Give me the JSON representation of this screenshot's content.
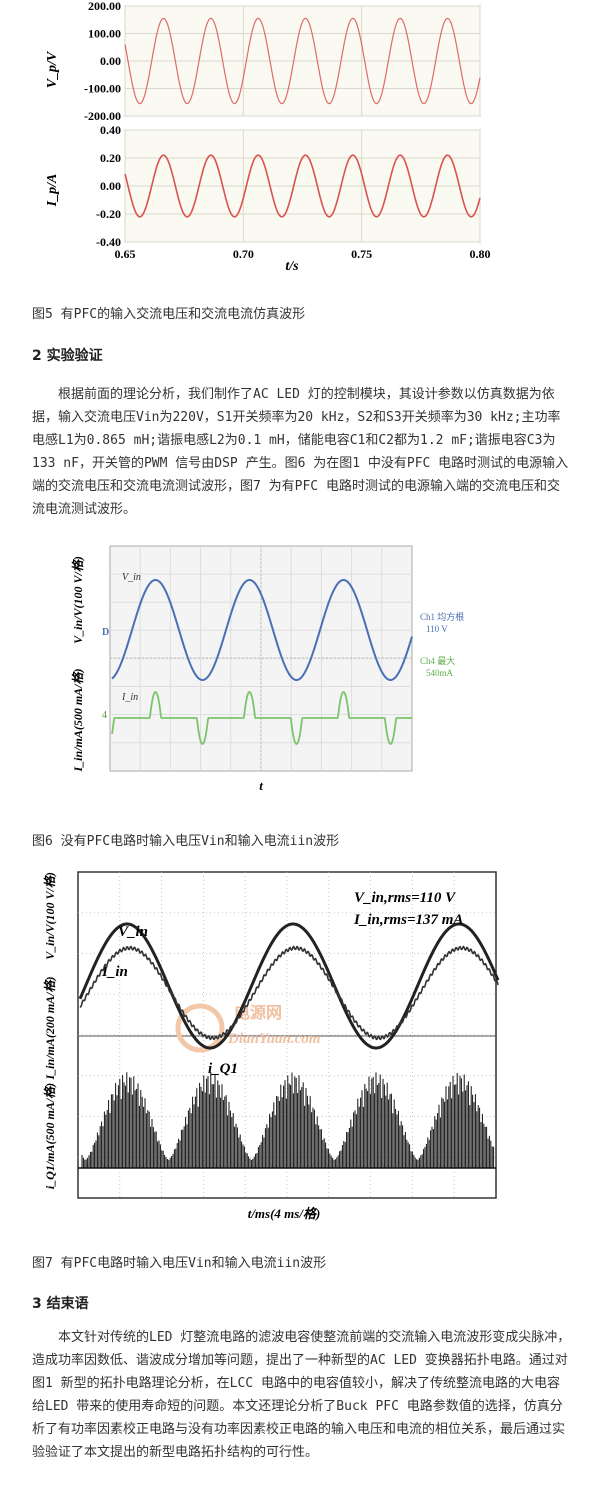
{
  "figures": {
    "fig5": {
      "caption": "图5 有PFC的输入交流电压和交流电流仿真波形",
      "top_ylabel": "V_p/V",
      "bottom_ylabel": "I_p/A",
      "xlabel": "t/s"
    },
    "fig6": {
      "caption": "图6 没有PFC电路时输入电压Vin和输入电流iin波形",
      "ylabel_top": "V_in/V(100 V/格)",
      "ylabel_bottom": "I_in/mA(500 mA/格)",
      "xlabel": "t",
      "ch1_label": "Ch1 均方根",
      "ch1_value": "110 V",
      "ch4_label": "Ch4 最大",
      "ch4_value": "540mA",
      "vin_label": "V_in",
      "iin_label": "I_in",
      "marker_d": "D",
      "marker_4": "4"
    },
    "fig7": {
      "caption": "图7 有PFC电路时输入电压Vin和输入电流iin波形",
      "vin_rms": "V_in,rms=110 V",
      "iin_rms": "I_in,rms=137 mA",
      "vin_label": "V_in",
      "iin_label": "I_in",
      "iq1_label": "i_Q1",
      "ylabel_top": "V_in/V(100 V/格)",
      "ylabel_mid": "I_in/mA(200 mA/格)",
      "ylabel_bottom": "i_Q1/mA(500 mA/格)",
      "xlabel": "t/ms(4 ms/格)",
      "watermark": "DianYuan.com",
      "watermark_cn": "电源网"
    }
  },
  "sections": {
    "exp_heading": "2 实验验证",
    "exp_para": "根据前面的理论分析，我们制作了AC LED 灯的控制模块，其设计参数以仿真数据为依据，输入交流电压Vin为220V，S1开关频率为20 kHz，S2和S3开关频率为30 kHz;主功率电感L1为0.865 mH;谐振电感L2为0.1 mH，储能电容C1和C2都为1.2 mF;谐振电容C3为133 nF，开关管的PWM 信号由DSP 产生。图6 为在图1 中没有PFC 电路时测试的电源输入端的交流电压和交流电流测试波形，图7 为有PFC 电路时测试的电源输入端的交流电压和交流电流测试波形。",
    "conc_heading": "3 结束语",
    "conc_para": "本文针对传统的LED 灯整流电路的滤波电容使整流前端的交流输入电流波形变成尖脉冲，造成功率因数低、谐波成分增加等问题，提出了一种新型的AC LED 变换器拓扑电路。通过对图1 新型的拓扑电路理论分析，在LCC 电路中的电容值较小，解决了传统整流电路的大电容给LED 带来的使用寿命短的问题。本文还理论分析了Buck PFC 电路参数值的选择，仿真分析了有功率因素校正电路与没有功率因素校正电路的输入电压和电流的相位关系，最后通过实验验证了本文提出的新型电路拓扑结构的可行性。"
  },
  "chart_data": [
    {
      "type": "line",
      "name_ref": "fig5-top",
      "x_range": [
        0.65,
        0.8
      ],
      "ylim": [
        -200,
        200
      ],
      "x_ticks": [
        "0.65",
        "0.70",
        "0.75",
        "0.80"
      ],
      "y_ticks": [
        "200.00",
        "100.00",
        "0.00",
        "-100.00",
        "-200.00"
      ],
      "series": [
        {
          "amplitude": 155,
          "frequency_hz": 50,
          "color": "#e06060"
        }
      ]
    },
    {
      "type": "line",
      "name_ref": "fig5-bottom",
      "x_range": [
        0.65,
        0.8
      ],
      "ylim": [
        -0.4,
        0.4
      ],
      "x_ticks": [
        "0.65",
        "0.70",
        "0.75",
        "0.80"
      ],
      "y_ticks": [
        "0.40",
        "0.20",
        "0.00",
        "-0.20",
        "-0.40"
      ],
      "series": [
        {
          "amplitude": 0.22,
          "frequency_hz": 50,
          "color": "#e06060"
        }
      ]
    }
  ]
}
